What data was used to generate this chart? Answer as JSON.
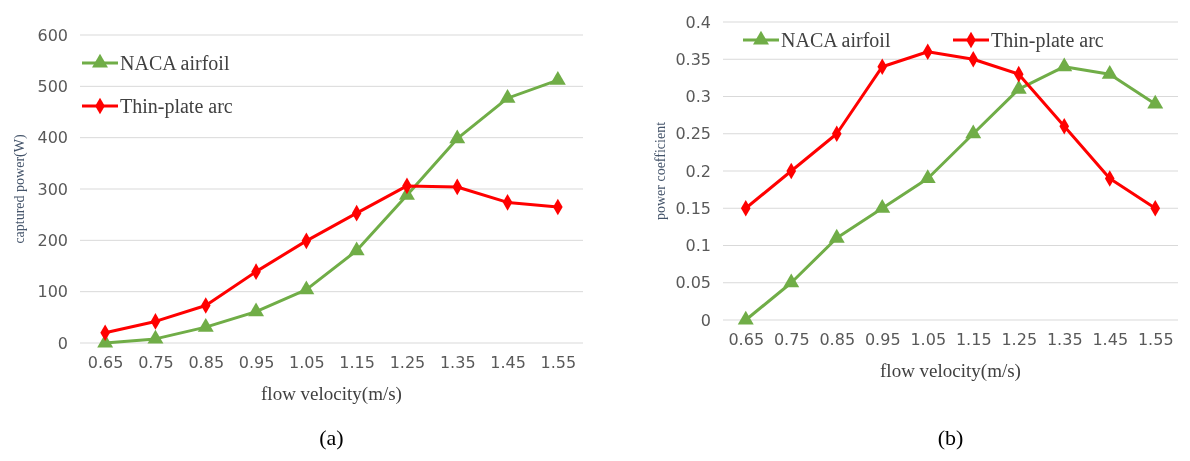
{
  "chart_data": [
    {
      "type": "line",
      "xlabel": "flow velocity(m/s)",
      "ylabel": "captured power(W)",
      "annotations": [
        "(a)"
      ],
      "categories": [
        "0.65",
        "0.75",
        "0.85",
        "0.95",
        "1.05",
        "1.15",
        "1.25",
        "1.35",
        "1.45",
        "1.55"
      ],
      "series": [
        {
          "name": "NACA airfoil",
          "color": "#70ad47",
          "marker": "triangle",
          "values": [
            0,
            8,
            31,
            61,
            104,
            180,
            288,
            398,
            477,
            512
          ]
        },
        {
          "name": "Thin-plate arc",
          "color": "#ff0000",
          "marker": "diamond",
          "values": [
            20,
            42,
            73,
            139,
            199,
            253,
            306,
            304,
            274,
            265
          ]
        }
      ],
      "ylim": [
        0,
        600
      ],
      "yticks": [
        0,
        100,
        200,
        300,
        400,
        500,
        600
      ],
      "grid": "y",
      "legend": "top left"
    },
    {
      "type": "line",
      "xlabel": "flow velocity(m/s)",
      "ylabel": "power coefficient",
      "annotations": [
        "(b)"
      ],
      "categories": [
        "0.65",
        "0.75",
        "0.85",
        "0.95",
        "1.05",
        "1.15",
        "1.25",
        "1.35",
        "1.45",
        "1.55"
      ],
      "series": [
        {
          "name": "NACA airfoil",
          "color": "#70ad47",
          "marker": "triangle",
          "values": [
            0,
            0.05,
            0.11,
            0.15,
            0.19,
            0.25,
            0.31,
            0.34,
            0.33,
            0.29
          ]
        },
        {
          "name": "Thin-plate arc",
          "color": "#ff0000",
          "marker": "diamond",
          "values": [
            0.15,
            0.2,
            0.25,
            0.34,
            0.36,
            0.35,
            0.33,
            0.26,
            0.19,
            0.15
          ]
        }
      ],
      "ylim": [
        0,
        0.4
      ],
      "yticks": [
        0,
        0.05,
        0.1,
        0.15,
        0.2,
        0.25,
        0.3,
        0.35,
        0.4
      ],
      "grid": "y",
      "legend": "top"
    }
  ]
}
